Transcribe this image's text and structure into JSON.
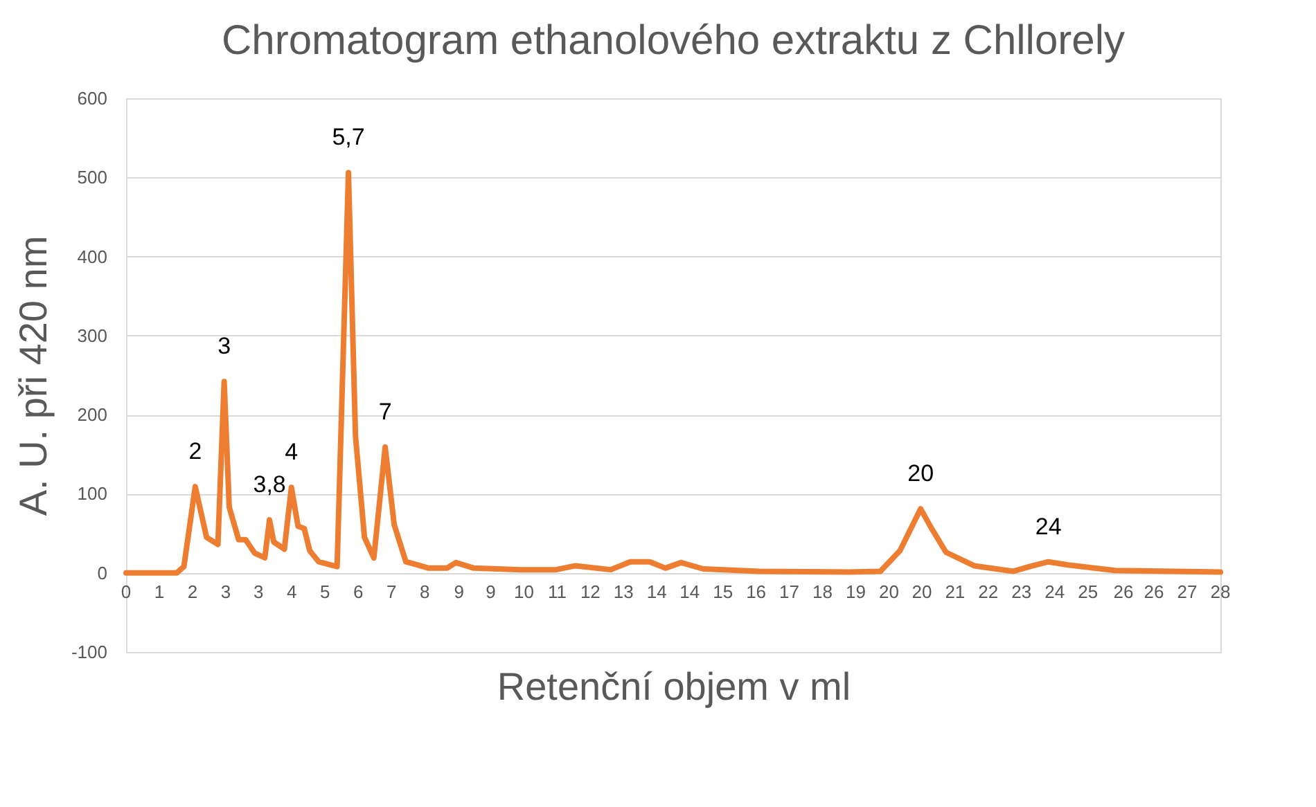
{
  "chart_data": {
    "type": "line",
    "title": "Chromatogram ethanolového extraktu z Chllorely",
    "xlabel": "Retenční objem v ml",
    "ylabel": "A. U. při 420 nm",
    "x": [
      0,
      1.3,
      1.48,
      1.77,
      2.06,
      2.35,
      2.51,
      2.64,
      2.88,
      3.06,
      3.29,
      3.55,
      3.67,
      3.78,
      4.05,
      4.23,
      4.4,
      4.56,
      4.7,
      4.93,
      5.4,
      5.69,
      5.87,
      6.1,
      6.34,
      6.63,
      6.86,
      7.16,
      7.39,
      7.74,
      8.21,
      8.44,
      8.9,
      10.1,
      11.0,
      11.5,
      12.4,
      12.9,
      13.4,
      13.8,
      14.2,
      14.77,
      16.2,
      18.5,
      19.3,
      19.8,
      20.33,
      20.6,
      20.98,
      21.7,
      22.7,
      23.2,
      23.6,
      24.1,
      25.3,
      28
    ],
    "series": [
      {
        "color": "#ed7d31",
        "values": [
          0,
          0,
          8,
          109,
          45,
          36,
          242,
          83,
          42,
          42,
          25,
          19,
          67,
          39,
          30,
          108,
          59,
          56,
          28,
          14,
          8,
          506,
          173,
          45,
          19,
          159,
          61,
          14,
          11,
          6,
          6,
          13,
          6,
          4,
          4,
          9,
          4,
          14,
          14,
          6,
          13,
          5,
          2,
          1,
          2,
          28,
          81,
          57,
          26,
          9,
          2,
          9,
          14,
          10,
          3,
          1
        ]
      }
    ],
    "annotations": [
      {
        "text": "2",
        "x": 1.77,
        "y": 109
      },
      {
        "text": "3",
        "x": 2.51,
        "y": 242
      },
      {
        "text": "3,8",
        "x": 3.67,
        "y": 67
      },
      {
        "text": "4",
        "x": 4.23,
        "y": 108
      },
      {
        "text": "5,7",
        "x": 5.69,
        "y": 506
      },
      {
        "text": "7",
        "x": 6.63,
        "y": 159
      },
      {
        "text": "20",
        "x": 20.33,
        "y": 81
      },
      {
        "text": "24",
        "x": 23.6,
        "y": 14
      }
    ],
    "xlim": [
      0,
      28
    ],
    "xticks": [
      {
        "value": 0,
        "label": "0"
      },
      {
        "value": 0.85,
        "label": "1"
      },
      {
        "value": 1.7,
        "label": "2"
      },
      {
        "value": 2.55,
        "label": "3"
      },
      {
        "value": 3.39,
        "label": "3"
      },
      {
        "value": 4.24,
        "label": "4"
      },
      {
        "value": 5.09,
        "label": "5"
      },
      {
        "value": 5.94,
        "label": "6"
      },
      {
        "value": 6.79,
        "label": "7"
      },
      {
        "value": 7.64,
        "label": "8"
      },
      {
        "value": 8.52,
        "label": "9"
      },
      {
        "value": 9.33,
        "label": "9"
      },
      {
        "value": 10.18,
        "label": "10"
      },
      {
        "value": 11.03,
        "label": "11"
      },
      {
        "value": 11.88,
        "label": "12"
      },
      {
        "value": 12.73,
        "label": "13"
      },
      {
        "value": 13.58,
        "label": "14"
      },
      {
        "value": 14.42,
        "label": "14"
      },
      {
        "value": 15.27,
        "label": "15"
      },
      {
        "value": 16.12,
        "label": "16"
      },
      {
        "value": 16.97,
        "label": "17"
      },
      {
        "value": 17.82,
        "label": "18"
      },
      {
        "value": 18.67,
        "label": "19"
      },
      {
        "value": 19.52,
        "label": "20"
      },
      {
        "value": 20.36,
        "label": "20"
      },
      {
        "value": 21.21,
        "label": "21"
      },
      {
        "value": 22.06,
        "label": "22"
      },
      {
        "value": 22.91,
        "label": "23"
      },
      {
        "value": 23.76,
        "label": "24"
      },
      {
        "value": 24.61,
        "label": "25"
      },
      {
        "value": 25.52,
        "label": "26"
      },
      {
        "value": 26.3,
        "label": "26"
      },
      {
        "value": 27.15,
        "label": "27"
      },
      {
        "value": 28,
        "label": "28"
      }
    ],
    "ylim": [
      -100,
      600
    ],
    "yticks": [
      -100,
      0,
      100,
      200,
      300,
      400,
      500,
      600
    ],
    "grid": "y",
    "marker": "none",
    "line_style": "solid"
  }
}
